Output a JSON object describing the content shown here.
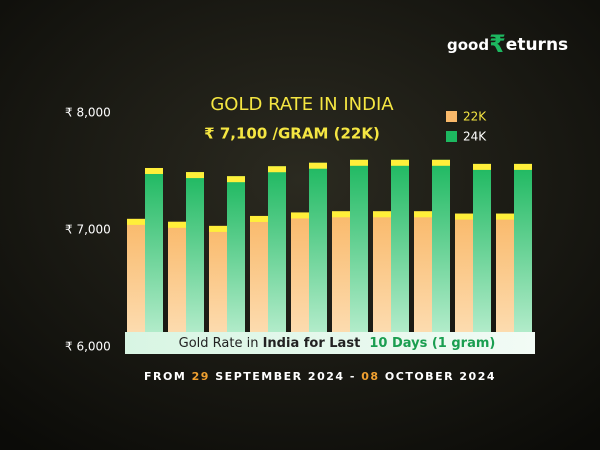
{
  "chart_data": {
    "type": "bar",
    "brand": [
      "good",
      "₹",
      "eturns"
    ],
    "title": "GOLD RATE IN INDIA",
    "subtitle": "₹ 7,100 /GRAM (22K)",
    "categories": [
      null,
      null,
      null,
      null,
      null,
      null,
      null,
      null,
      null,
      null
    ],
    "series": [
      {
        "name": "22K",
        "color": "#f9b96a",
        "values": [
          7095,
          7070,
          7035,
          7120,
          7150,
          7160,
          7160,
          7160,
          7140,
          7140
        ]
      },
      {
        "name": "24K",
        "color": "#1db860",
        "values": [
          7530,
          7495,
          7460,
          7545,
          7575,
          7600,
          7600,
          7600,
          7565,
          7565
        ]
      }
    ],
    "ylim": [
      6000,
      8000
    ],
    "yticks": [
      {
        "value": 6000,
        "label": "₹ 6,000"
      },
      {
        "value": 7000,
        "label": "₹ 7,000"
      },
      {
        "value": 8000,
        "label": "₹ 8,000"
      }
    ],
    "grid": false,
    "legend": "top-right",
    "banner": [
      "Gold Rate in ",
      "India for Last",
      "  10 Days (1 gram)"
    ],
    "footer": [
      "FROM ",
      "29",
      " SEPTEMBER 2024 - ",
      "08",
      " OCTOBER 2024"
    ]
  }
}
